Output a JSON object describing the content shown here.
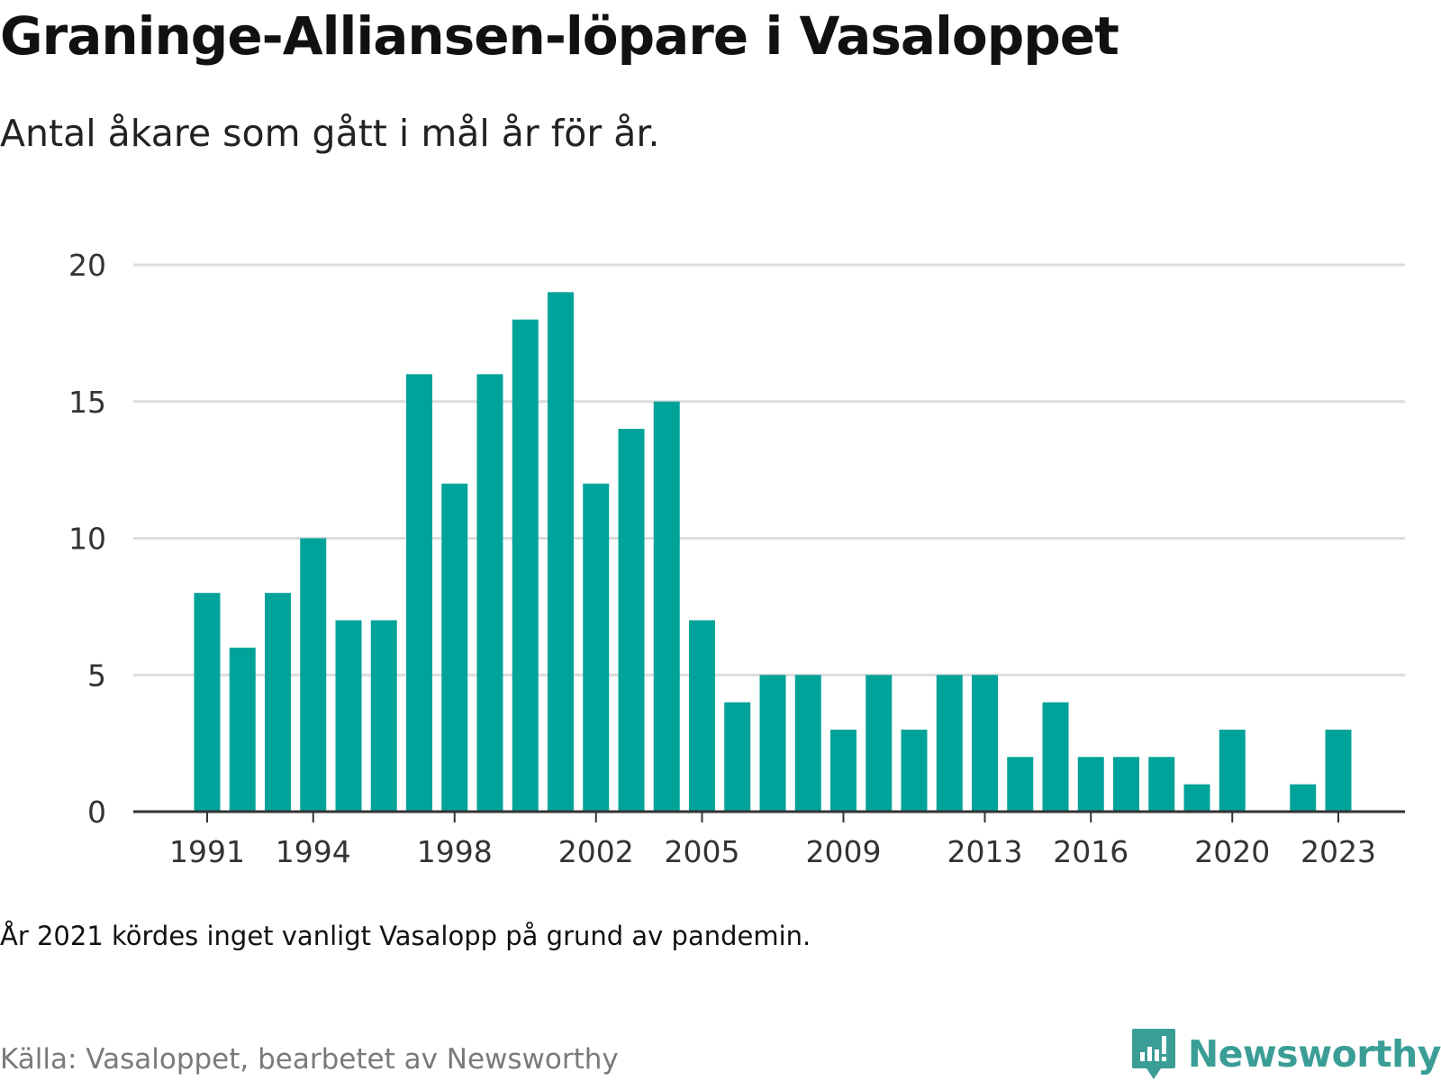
{
  "title": "Graninge-Alliansen-löpare i Vasaloppet",
  "subtitle": "Antal åkare som gått i mål år för år.",
  "note": "År 2021 kördes inget vanligt Vasalopp på grund av pandemin.",
  "source": "Källa: Vasaloppet, bearbetet av Newsworthy",
  "brand": {
    "name": "Newsworthy",
    "icon": "newsworthy-logo-icon",
    "color": "#3b9e96"
  },
  "chart_data": {
    "type": "bar",
    "title": "Graninge-Alliansen-löpare i Vasaloppet",
    "subtitle": "Antal åkare som gått i mål år för år.",
    "xlabel": "",
    "ylabel": "",
    "x": [
      1991,
      1992,
      1993,
      1994,
      1995,
      1996,
      1997,
      1998,
      1999,
      2000,
      2001,
      2002,
      2003,
      2004,
      2005,
      2006,
      2007,
      2008,
      2009,
      2010,
      2011,
      2012,
      2013,
      2014,
      2015,
      2016,
      2017,
      2018,
      2019,
      2020,
      2021,
      2022,
      2023
    ],
    "values": [
      8,
      6,
      8,
      10,
      7,
      7,
      16,
      12,
      16,
      18,
      19,
      12,
      14,
      15,
      7,
      4,
      5,
      5,
      3,
      5,
      3,
      5,
      5,
      2,
      4,
      2,
      2,
      2,
      1,
      3,
      0,
      1,
      3
    ],
    "xticks": [
      1991,
      1994,
      1998,
      2002,
      2005,
      2009,
      2013,
      2016,
      2020,
      2023
    ],
    "yticks": [
      0,
      5,
      10,
      15,
      20
    ],
    "ylim": [
      0,
      20
    ],
    "grid": true,
    "bar_color": "#00a39a"
  }
}
